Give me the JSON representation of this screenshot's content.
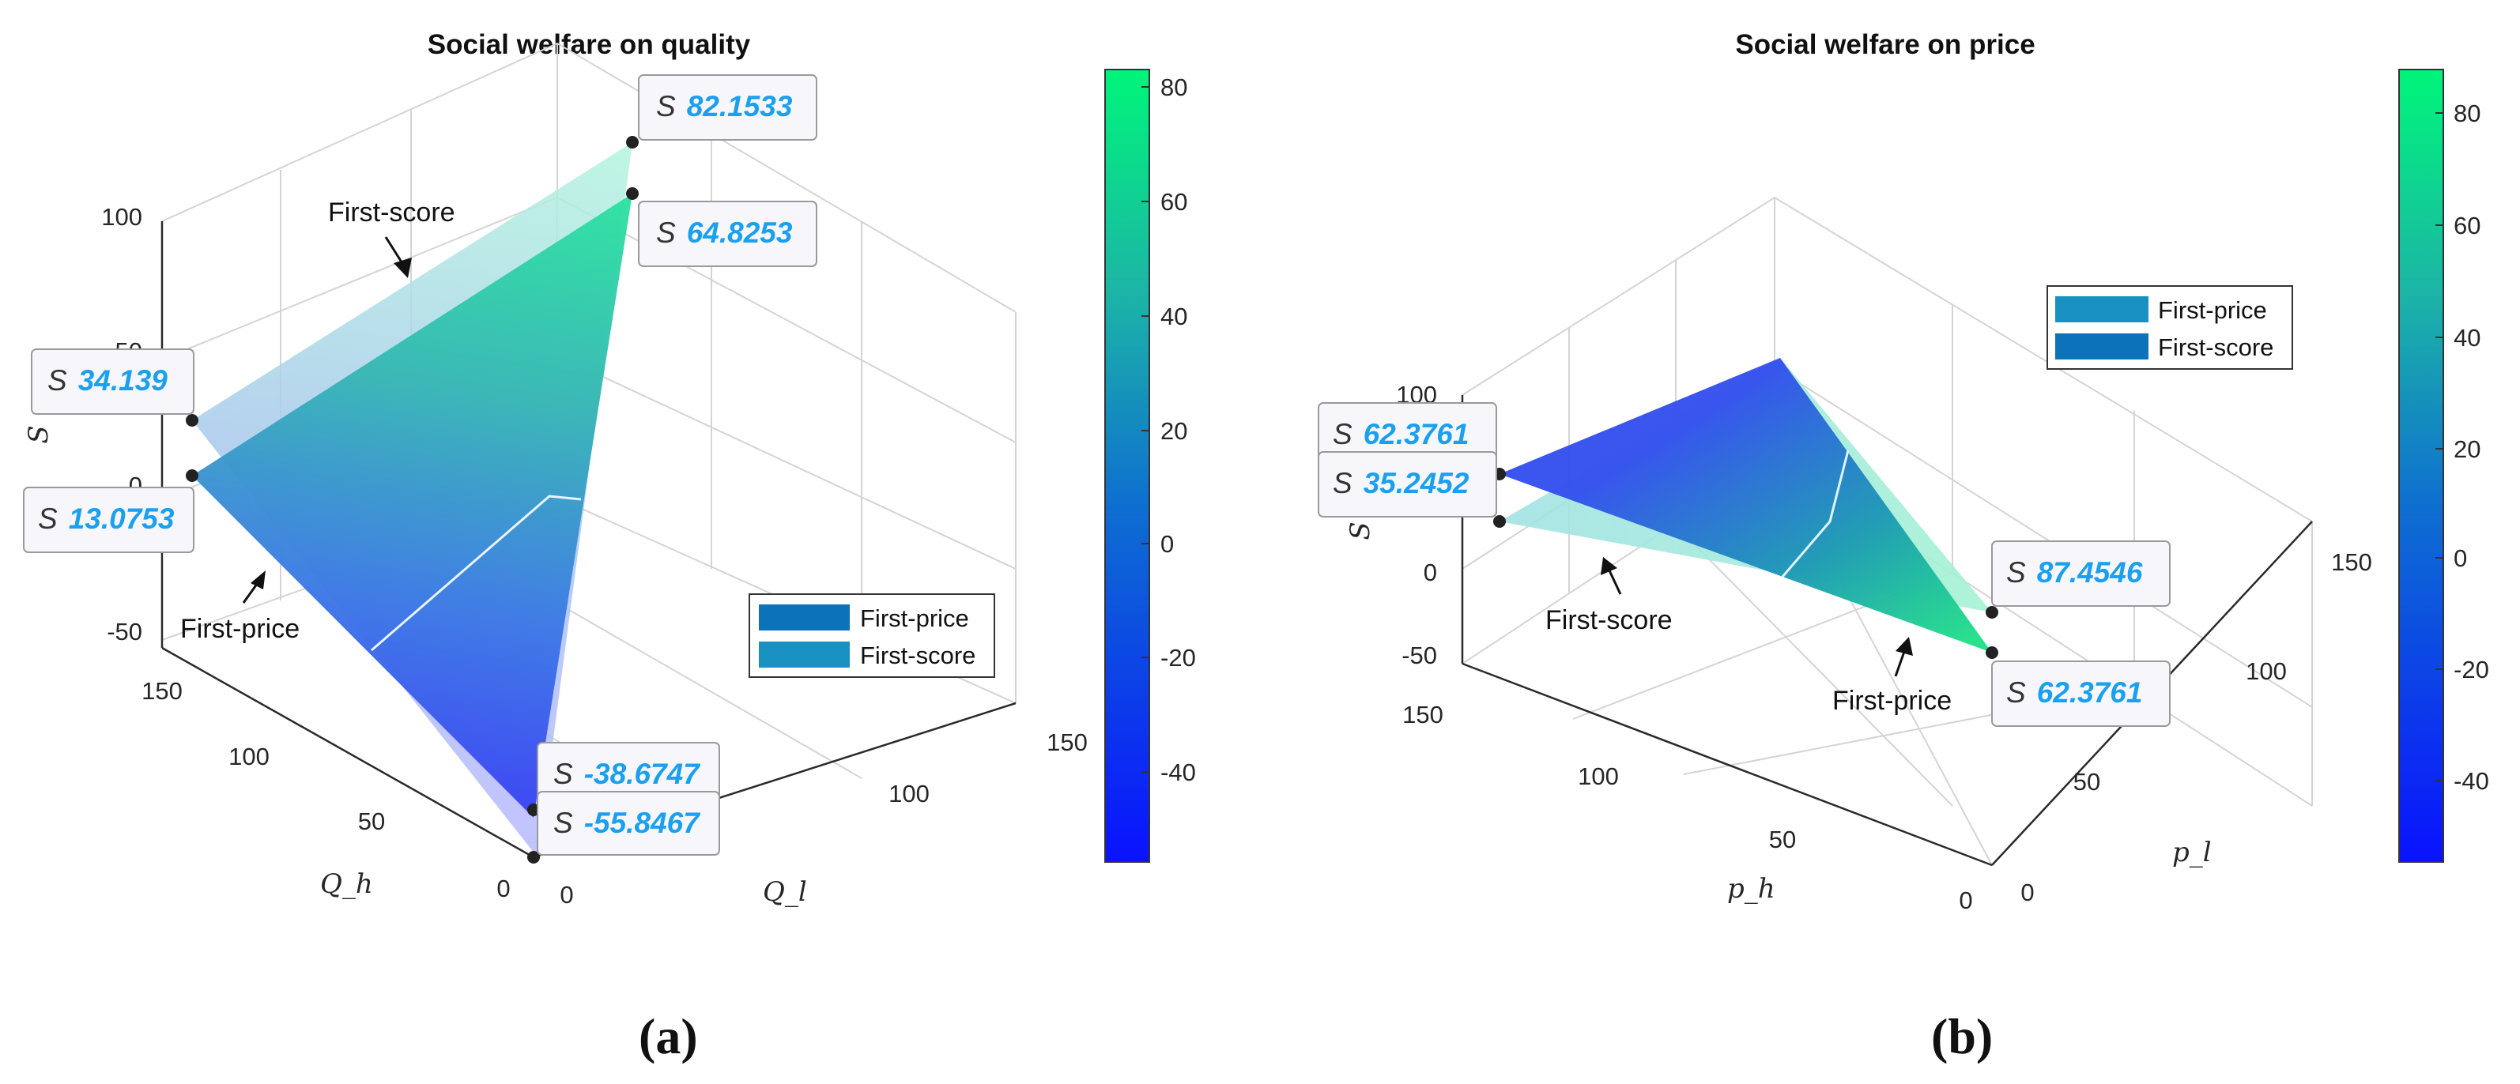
{
  "chart_data": [
    {
      "type": "surface3d",
      "panel": "(a)",
      "title": "Social welfare on quality",
      "xlabel": "Q_l",
      "ylabel": "Q_h",
      "zlabel": "S",
      "xlim": [
        0,
        150
      ],
      "ylim": [
        0,
        150
      ],
      "zlim": [
        -50,
        100
      ],
      "x_ticks": [
        "0",
        "100",
        "150"
      ],
      "y_ticks": [
        "0",
        "50",
        "100",
        "150"
      ],
      "z_ticks": [
        "-50",
        "0",
        "50",
        "100"
      ],
      "colorbar": {
        "range": [
          -56,
          83
        ],
        "ticks": [
          "80",
          "60",
          "40",
          "20",
          "0",
          "-20",
          "-40"
        ]
      },
      "legend": {
        "position": "right",
        "entries": [
          "First-price",
          "First-score"
        ]
      },
      "annotations": [
        "First-score",
        "First-price"
      ],
      "datatips": [
        {
          "label": "S",
          "value": "82.1533"
        },
        {
          "label": "S",
          "value": "64.8253"
        },
        {
          "label": "S",
          "value": "34.139"
        },
        {
          "label": "S",
          "value": "13.0753"
        },
        {
          "label": "S",
          "value": "-38.6747"
        },
        {
          "label": "S",
          "value": "-55.8467"
        }
      ],
      "series": [
        {
          "name": "First-price",
          "vertex_values": [
            64.8253,
            13.0753,
            -55.8467
          ]
        },
        {
          "name": "First-score",
          "vertex_values": [
            82.1533,
            34.139,
            -38.6747
          ]
        }
      ]
    },
    {
      "type": "surface3d",
      "panel": "(b)",
      "title": "Social welfare on price",
      "xlabel": "p_l",
      "ylabel": "p_h",
      "zlabel": "S",
      "xlim": [
        0,
        150
      ],
      "ylim": [
        0,
        150
      ],
      "zlim": [
        -50,
        100
      ],
      "x_ticks": [
        "0",
        "50",
        "100",
        "150"
      ],
      "y_ticks": [
        "0",
        "50",
        "100",
        "150"
      ],
      "z_ticks": [
        "-50",
        "0",
        "100"
      ],
      "colorbar": {
        "range": [
          -55,
          87
        ],
        "ticks": [
          "80",
          "60",
          "40",
          "20",
          "0",
          "-20",
          "-40"
        ]
      },
      "legend": {
        "position": "top-right",
        "entries": [
          "First-price",
          "First-score"
        ]
      },
      "annotations": [
        "First-score",
        "First-price"
      ],
      "datatips": [
        {
          "label": "S",
          "value": "62.3761"
        },
        {
          "label": "S",
          "value": "35.2452"
        },
        {
          "label": "S",
          "value": "87.4546"
        },
        {
          "label": "S",
          "value": "62.3761"
        }
      ],
      "series": [
        {
          "name": "First-price",
          "vertex_values": [
            62.3761,
            62.3761,
            -48
          ]
        },
        {
          "name": "First-score",
          "vertex_values": [
            35.2452,
            87.4546,
            -48
          ]
        }
      ]
    }
  ],
  "captions": [
    "(a)",
    "(b)"
  ]
}
